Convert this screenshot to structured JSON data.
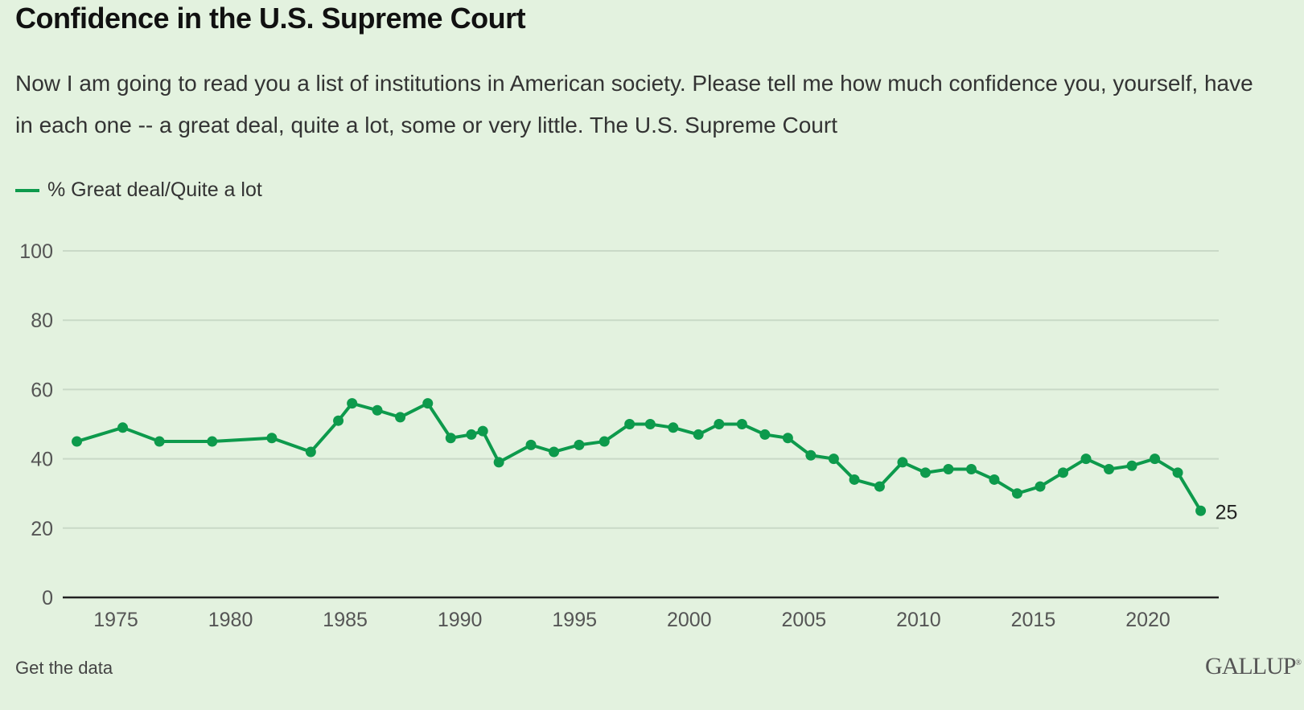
{
  "title": "Confidence in the U.S. Supreme Court",
  "subtitle": "Now I am going to read you a list of institutions in American society. Please tell me how much confidence you, yourself, have in each one -- a great deal, quite a lot, some or very little. The U.S. Supreme Court",
  "footer": {
    "get_data_label": "Get the data",
    "logo_text": "GALLUP",
    "logo_mark": "®"
  },
  "colors": {
    "series": "#0d9a4c",
    "background": "#e3f2df",
    "grid": "#c9d9c7",
    "axis": "#222222"
  },
  "chart_data": {
    "type": "line",
    "title": "Confidence in the U.S. Supreme Court",
    "xlabel": "",
    "ylabel": "",
    "ylim": [
      0,
      100
    ],
    "xlim": [
      1972.5,
      2023.5
    ],
    "yticks": [
      0,
      20,
      40,
      60,
      80,
      100
    ],
    "xticks": [
      1975,
      1980,
      1985,
      1990,
      1995,
      2000,
      2005,
      2010,
      2015,
      2020
    ],
    "grid": true,
    "legend_position": "top-left",
    "end_label": "25",
    "series": [
      {
        "name": "% Great deal/Quite a lot",
        "x": [
          1973.3,
          1975.3,
          1976.9,
          1979.2,
          1981.8,
          1983.5,
          1984.7,
          1985.3,
          1986.4,
          1987.4,
          1988.6,
          1989.6,
          1990.5,
          1991.0,
          1991.7,
          1993.1,
          1994.1,
          1995.2,
          1996.3,
          1997.4,
          1998.3,
          1999.3,
          2000.4,
          2001.3,
          2002.3,
          2003.3,
          2004.3,
          2005.3,
          2006.3,
          2007.2,
          2008.3,
          2009.3,
          2010.3,
          2011.3,
          2012.3,
          2013.3,
          2014.3,
          2015.3,
          2016.3,
          2017.3,
          2018.3,
          2019.3,
          2020.3,
          2021.3,
          2022.3
        ],
        "values": [
          45,
          49,
          45,
          45,
          46,
          42,
          51,
          56,
          54,
          52,
          56,
          46,
          47,
          48,
          39,
          44,
          42,
          44,
          45,
          50,
          50,
          49,
          47,
          50,
          50,
          47,
          46,
          41,
          40,
          34,
          32,
          39,
          36,
          37,
          37,
          34,
          30,
          32,
          36,
          40,
          37,
          38,
          40,
          36,
          25
        ]
      }
    ]
  }
}
